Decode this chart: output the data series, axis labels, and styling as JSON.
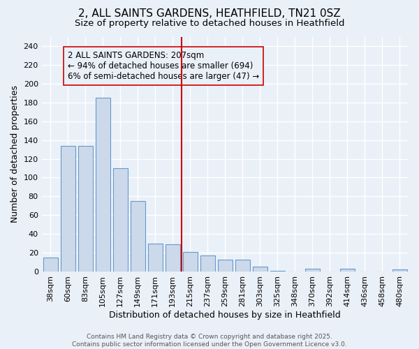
{
  "title_line1": "2, ALL SAINTS GARDENS, HEATHFIELD, TN21 0SZ",
  "title_line2": "Size of property relative to detached houses in Heathfield",
  "xlabel": "Distribution of detached houses by size in Heathfield",
  "ylabel": "Number of detached properties",
  "bar_labels": [
    "38sqm",
    "60sqm",
    "83sqm",
    "105sqm",
    "127sqm",
    "149sqm",
    "171sqm",
    "193sqm",
    "215sqm",
    "237sqm",
    "259sqm",
    "281sqm",
    "303sqm",
    "325sqm",
    "348sqm",
    "370sqm",
    "392sqm",
    "414sqm",
    "436sqm",
    "458sqm",
    "480sqm"
  ],
  "bar_values": [
    15,
    134,
    134,
    185,
    110,
    75,
    30,
    29,
    21,
    17,
    13,
    13,
    5,
    1,
    0,
    3,
    0,
    3,
    0,
    0,
    2
  ],
  "bar_color": "#ccd9ea",
  "bar_edgecolor": "#6699cc",
  "vline_pos": 7.5,
  "vline_color": "#cc0000",
  "annotation_text": "2 ALL SAINTS GARDENS: 207sqm\n← 94% of detached houses are smaller (694)\n6% of semi-detached houses are larger (47) →",
  "ylim": [
    0,
    250
  ],
  "yticks": [
    0,
    20,
    40,
    60,
    80,
    100,
    120,
    140,
    160,
    180,
    200,
    220,
    240
  ],
  "background_color": "#eaf0f8",
  "grid_color": "#ffffff",
  "footer": "Contains HM Land Registry data © Crown copyright and database right 2025.\nContains public sector information licensed under the Open Government Licence v3.0.",
  "title_fontsize": 11,
  "subtitle_fontsize": 9.5,
  "annot_fontsize": 8.5,
  "footer_fontsize": 6.5,
  "axis_label_fontsize": 9,
  "tick_fontsize": 8
}
